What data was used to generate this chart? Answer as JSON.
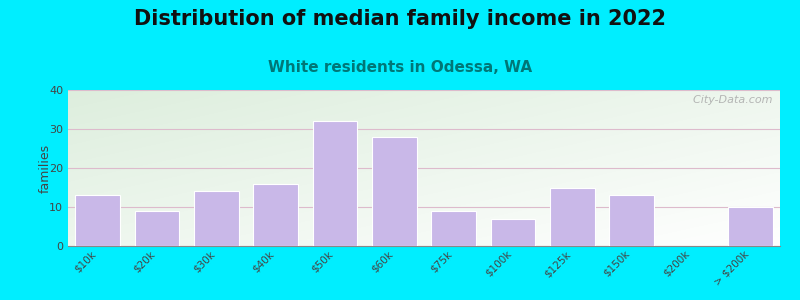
{
  "title": "Distribution of median family income in 2022",
  "subtitle": "White residents in Odessa, WA",
  "categories": [
    "$10k",
    "$20k",
    "$30k",
    "$40k",
    "$50k",
    "$60k",
    "$75k",
    "$100k",
    "$125k",
    "$150k",
    "$200k",
    "> $200k"
  ],
  "values": [
    13,
    9,
    14,
    16,
    32,
    28,
    9,
    7,
    15,
    13,
    0,
    10
  ],
  "bar_color": "#c9b8e8",
  "bar_edgecolor": "#ffffff",
  "ylabel": "families",
  "ylim": [
    0,
    40
  ],
  "yticks": [
    0,
    10,
    20,
    30,
    40
  ],
  "background_outer": "#00eeff",
  "plot_bg_topleft": "#ddeedd",
  "plot_bg_bottomright": "#ffffff",
  "title_fontsize": 15,
  "subtitle_fontsize": 11,
  "subtitle_color": "#007777",
  "grid_color": "#ddbbcc",
  "watermark": "  City-Data.com",
  "watermark_color": "#aaaaaa"
}
